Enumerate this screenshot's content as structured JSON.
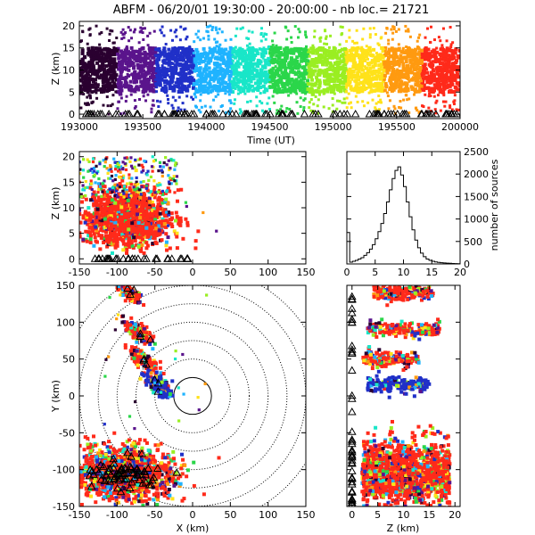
{
  "colors": {
    "background": "#ffffff",
    "frame": "#000000",
    "palette": [
      "#2a0030",
      "#5a148c",
      "#2030c8",
      "#1fb3ff",
      "#19e6c8",
      "#2bd64a",
      "#9aee22",
      "#ffe21a",
      "#ff9a10",
      "#ff2a1a"
    ],
    "station_marker": "#000000"
  },
  "chart_data": [
    {
      "type": "scatter",
      "id": "time_height",
      "title": "ABFM - 06/20/01 19:30:00 - 20:00:00 - nb loc.=  21721",
      "xlabel": "Time (UT)",
      "ylabel": "Z (km)",
      "xlim": [
        193000,
        200000
      ],
      "ylim": [
        -1,
        21
      ],
      "xticks": [
        193000,
        193500,
        194000,
        194500,
        195000,
        195500,
        200000
      ],
      "xtick_labels": [
        "193000",
        "193500",
        "194000",
        "194500",
        "195000",
        "195500",
        "200000"
      ],
      "yticks": [
        0,
        5,
        10,
        15,
        20
      ],
      "ytick_labels": [
        "0",
        "5",
        "10",
        "15",
        "20"
      ],
      "color_encoding": "time (purple early, red late)",
      "core_height_range_km": [
        5,
        15
      ],
      "sparse_height_range_km": [
        0,
        20
      ]
    },
    {
      "type": "scatter",
      "id": "x_z",
      "xlabel": "",
      "ylabel": "Z (km)",
      "xlim": [
        -150,
        150
      ],
      "ylim": [
        -1,
        21
      ],
      "xticks": [
        -150,
        -100,
        -50,
        0,
        50,
        100,
        150
      ],
      "xtick_labels": [
        "-150",
        "-100",
        "-50",
        "0",
        "50",
        "100",
        "150"
      ],
      "yticks": [
        0,
        5,
        10,
        15,
        20
      ],
      "ytick_labels": [
        "0",
        "5",
        "10",
        "15",
        "20"
      ],
      "clusters": [
        {
          "x_range": [
            -150,
            -20
          ],
          "z_range": [
            3,
            20
          ],
          "center_x": -85,
          "center_z": 8
        }
      ]
    },
    {
      "type": "line",
      "id": "histogram",
      "xlabel": "",
      "ylabel": "number of sources",
      "y_axis_side": "right",
      "xlim": [
        0,
        20
      ],
      "ylim": [
        0,
        2500
      ],
      "xticks": [
        0,
        5,
        10,
        15,
        20
      ],
      "xtick_labels": [
        "0",
        "5",
        "10",
        "15",
        "20"
      ],
      "yticks": [
        0,
        500,
        1000,
        1500,
        2000,
        2500
      ],
      "ytick_labels": [
        "0",
        "500",
        "1000",
        "1500",
        "2000",
        "2500"
      ],
      "x": [
        0,
        0.5,
        1,
        1.5,
        2,
        2.5,
        3,
        3.5,
        4,
        4.5,
        5,
        5.5,
        6,
        6.5,
        7,
        7.5,
        8,
        8.5,
        9,
        9.5,
        10,
        10.5,
        11,
        11.5,
        12,
        12.5,
        13,
        13.5,
        14,
        14.5,
        15,
        15.5,
        16,
        16.5,
        17,
        17.5,
        18,
        18.5,
        19,
        19.5
      ],
      "values": [
        700,
        40,
        60,
        80,
        110,
        140,
        190,
        250,
        330,
        430,
        560,
        720,
        900,
        1120,
        1380,
        1650,
        1900,
        2080,
        2160,
        1980,
        1720,
        1380,
        1050,
        760,
        530,
        360,
        240,
        160,
        110,
        80,
        60,
        45,
        35,
        28,
        22,
        18,
        14,
        10,
        8,
        5
      ]
    },
    {
      "type": "scatter",
      "id": "plan_view",
      "xlabel": "X (km)",
      "ylabel": "Y (km)",
      "xlim": [
        -150,
        150
      ],
      "ylim": [
        -150,
        150
      ],
      "xticks": [
        -150,
        -100,
        -50,
        0,
        50,
        100,
        150
      ],
      "xtick_labels": [
        "-150",
        "-100",
        "-50",
        "0",
        "50",
        "100",
        "150"
      ],
      "yticks": [
        -150,
        -100,
        -50,
        0,
        50,
        100,
        150
      ],
      "ytick_labels": [
        "-150",
        "-100",
        "-50",
        "0",
        "50",
        "100",
        "150"
      ],
      "range_rings_km": [
        25,
        50,
        75,
        100,
        125,
        150,
        175
      ],
      "solid_ring_km": 25,
      "clusters": [
        {
          "x": -85,
          "y": 140,
          "spread": 8
        },
        {
          "x": -70,
          "y": 85,
          "spread": 10
        },
        {
          "x": -65,
          "y": 50,
          "spread": 10
        },
        {
          "x": -45,
          "y": 15,
          "spread": 10
        },
        {
          "x": -90,
          "y": -105,
          "spread": 30
        }
      ]
    },
    {
      "type": "scatter",
      "id": "z_y",
      "xlabel": "Z (km)",
      "ylabel": "",
      "xlim": [
        -1,
        21
      ],
      "ylim": [
        -150,
        150
      ],
      "xticks": [
        0,
        5,
        10,
        15,
        20
      ],
      "xtick_labels": [
        "0",
        "5",
        "10",
        "15",
        "20"
      ],
      "yticks": [
        -150,
        -100,
        -50,
        0,
        50,
        100,
        150
      ],
      "ytick_labels": [
        "-150",
        "-100",
        "-50",
        "0",
        "50",
        "100",
        "150"
      ],
      "bands": [
        {
          "y": 140,
          "z_range": [
            4,
            16
          ]
        },
        {
          "y": 90,
          "z_range": [
            3,
            17
          ]
        },
        {
          "y": 50,
          "z_range": [
            2,
            13
          ]
        },
        {
          "y": 15,
          "z_range": [
            3,
            15
          ]
        },
        {
          "y": -105,
          "z_range": [
            2,
            19
          ],
          "core": true
        }
      ]
    }
  ]
}
